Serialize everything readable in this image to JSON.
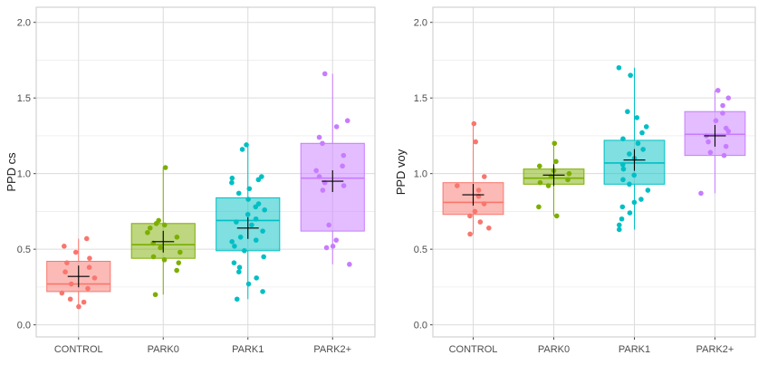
{
  "chart_data": [
    {
      "type": "box",
      "ylabel": "PPD cs",
      "xlabel": "",
      "ylim": [
        -0.08,
        2.1
      ],
      "yticks": [
        "0.0",
        "0.5",
        "1.0",
        "1.5",
        "2.0"
      ],
      "categories": [
        "CONTROL",
        "PARK0",
        "PARK1",
        "PARK2+"
      ],
      "colors": [
        "#F8766D",
        "#7CAE00",
        "#00BFC4",
        "#C77CFF"
      ],
      "grid": true,
      "boxes": [
        {
          "group": "CONTROL",
          "min": 0.12,
          "q1": 0.22,
          "median": 0.27,
          "q3": 0.42,
          "max": 0.57,
          "mean": 0.32,
          "points": [
            0.57,
            0.52,
            0.48,
            0.44,
            0.41,
            0.38,
            0.35,
            0.31,
            0.27,
            0.24,
            0.21,
            0.17,
            0.15,
            0.12
          ]
        },
        {
          "group": "PARK0",
          "min": 0.2,
          "q1": 0.44,
          "median": 0.53,
          "q3": 0.67,
          "max": 1.04,
          "mean": 0.55,
          "points": [
            1.04,
            0.69,
            0.67,
            0.66,
            0.64,
            0.61,
            0.58,
            0.54,
            0.51,
            0.48,
            0.45,
            0.43,
            0.41,
            0.36,
            0.2
          ]
        },
        {
          "group": "PARK1",
          "min": 0.17,
          "q1": 0.49,
          "median": 0.69,
          "q3": 0.84,
          "max": 1.19,
          "mean": 0.64,
          "points": [
            1.19,
            1.16,
            0.98,
            0.97,
            0.96,
            0.94,
            0.9,
            0.87,
            0.83,
            0.8,
            0.78,
            0.76,
            0.73,
            0.7,
            0.68,
            0.66,
            0.62,
            0.58,
            0.56,
            0.55,
            0.52,
            0.49,
            0.45,
            0.41,
            0.38,
            0.35,
            0.31,
            0.27,
            0.22,
            0.17
          ]
        },
        {
          "group": "PARK2+",
          "min": 0.4,
          "q1": 0.62,
          "median": 0.97,
          "q3": 1.2,
          "max": 1.66,
          "mean": 0.95,
          "points": [
            1.66,
            1.35,
            1.31,
            1.24,
            1.2,
            1.12,
            1.05,
            1.02,
            0.98,
            0.94,
            0.92,
            0.89,
            0.66,
            0.56,
            0.52,
            0.51,
            0.4
          ]
        }
      ]
    },
    {
      "type": "box",
      "ylabel": "PPD voy",
      "xlabel": "",
      "ylim": [
        -0.08,
        2.1
      ],
      "yticks": [
        "0.0",
        "0.5",
        "1.0",
        "1.5",
        "2.0"
      ],
      "categories": [
        "CONTROL",
        "PARK0",
        "PARK1",
        "PARK2+"
      ],
      "colors": [
        "#F8766D",
        "#7CAE00",
        "#00BFC4",
        "#C77CFF"
      ],
      "grid": true,
      "boxes": [
        {
          "group": "CONTROL",
          "min": 0.6,
          "q1": 0.73,
          "median": 0.81,
          "q3": 0.94,
          "max": 1.33,
          "mean": 0.86,
          "points": [
            1.33,
            1.21,
            0.98,
            0.92,
            0.89,
            0.85,
            0.8,
            0.75,
            0.72,
            0.68,
            0.64,
            0.6
          ]
        },
        {
          "group": "PARK0",
          "min": 0.72,
          "q1": 0.93,
          "median": 0.97,
          "q3": 1.03,
          "max": 1.2,
          "mean": 0.99,
          "points": [
            1.2,
            1.08,
            1.05,
            1.02,
            1.0,
            0.98,
            0.96,
            0.94,
            0.92,
            0.78,
            0.72
          ]
        },
        {
          "group": "PARK1",
          "min": 0.63,
          "q1": 0.93,
          "median": 1.07,
          "q3": 1.22,
          "max": 1.7,
          "mean": 1.09,
          "points": [
            1.7,
            1.65,
            1.41,
            1.37,
            1.31,
            1.27,
            1.23,
            1.2,
            1.16,
            1.13,
            1.1,
            1.06,
            1.03,
            0.99,
            0.96,
            0.93,
            0.89,
            0.83,
            0.81,
            0.78,
            0.74,
            0.7,
            0.66,
            0.63
          ]
        },
        {
          "group": "PARK2+",
          "min": 0.87,
          "q1": 1.12,
          "median": 1.26,
          "q3": 1.41,
          "max": 1.55,
          "mean": 1.25,
          "points": [
            1.55,
            1.5,
            1.45,
            1.4,
            1.35,
            1.3,
            1.28,
            1.25,
            1.21,
            1.18,
            1.14,
            1.12,
            0.87
          ]
        }
      ]
    }
  ]
}
